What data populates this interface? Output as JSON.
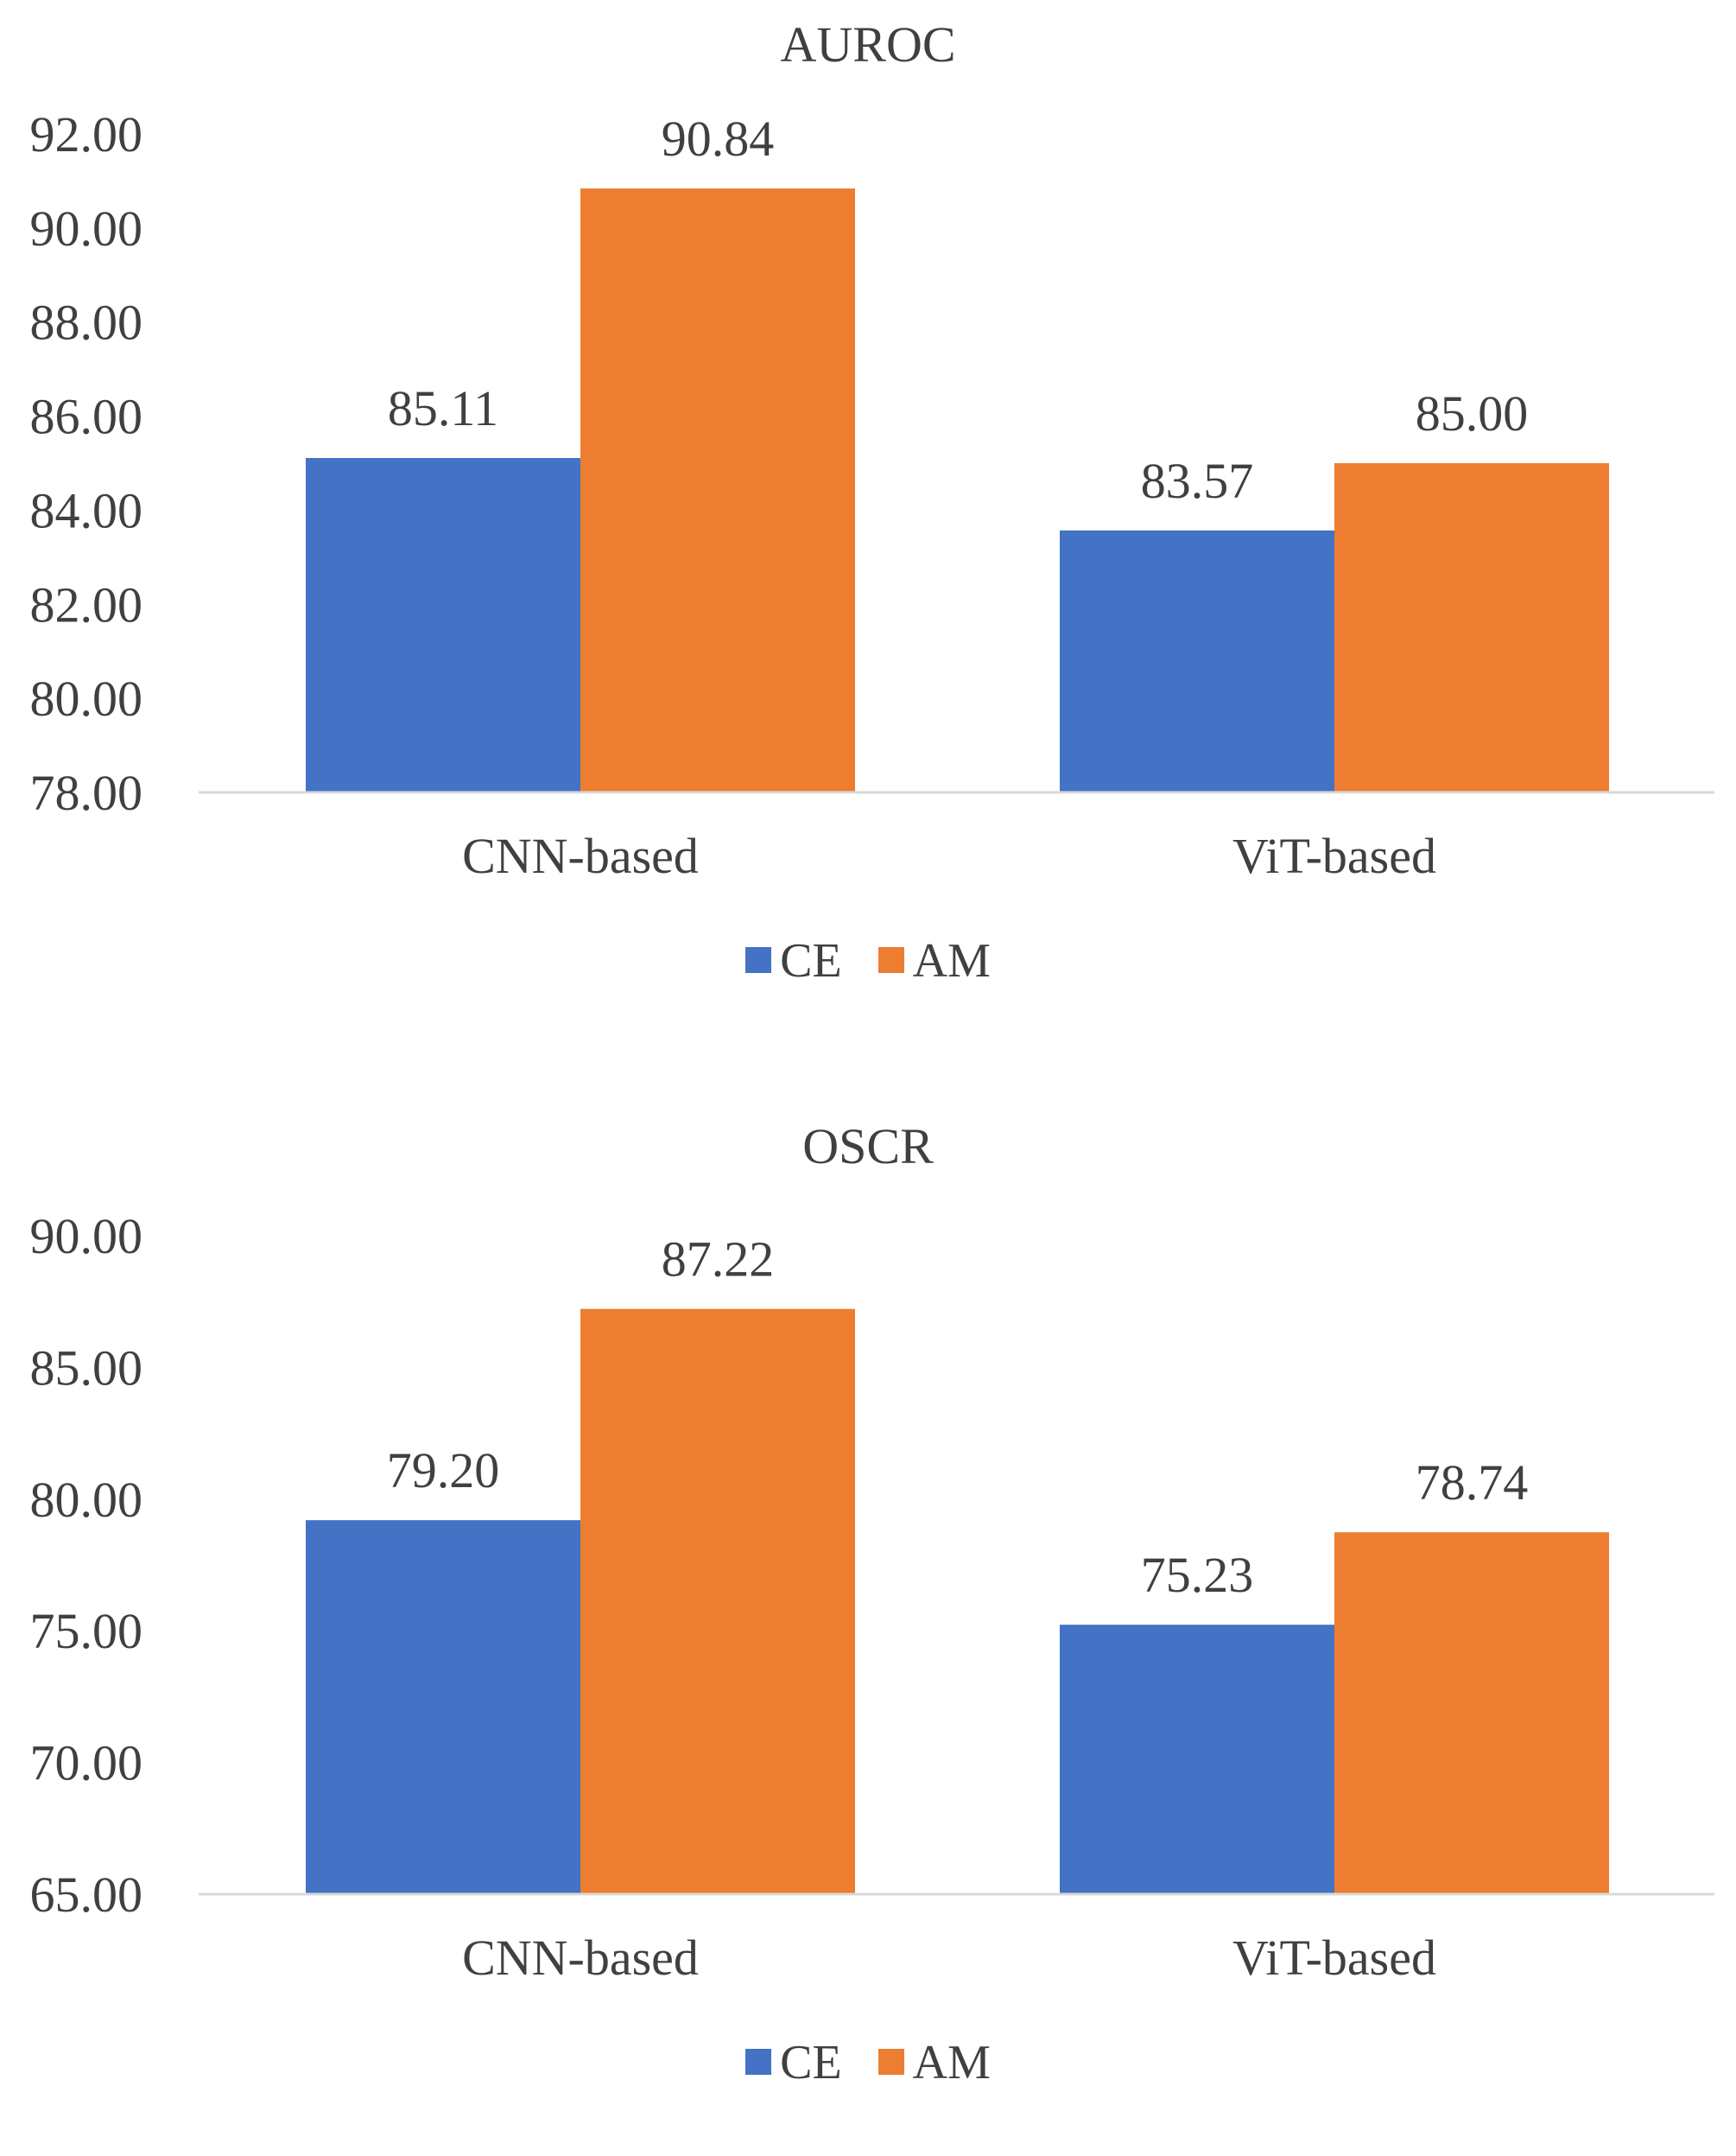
{
  "legend": {
    "ce_label": "CE",
    "am_label": "AM"
  },
  "colors": {
    "CE": "#4472C4",
    "AM": "#ED7D31",
    "text": "#404040",
    "axis": "#d9d9d9"
  },
  "chart_data": [
    {
      "type": "bar",
      "title": "AUROC",
      "categories": [
        "CNN-based",
        "ViT-based"
      ],
      "series": [
        {
          "name": "CE",
          "values": [
            85.11,
            83.57
          ],
          "labels": [
            "85.11",
            "83.57"
          ]
        },
        {
          "name": "AM",
          "values": [
            90.84,
            85.0
          ],
          "labels": [
            "90.84",
            "85.00"
          ]
        }
      ],
      "ylim": [
        78,
        92
      ],
      "yticks": [
        78,
        80,
        82,
        84,
        86,
        88,
        90,
        92
      ],
      "ytick_labels": [
        "78.00",
        "80.00",
        "82.00",
        "84.00",
        "86.00",
        "88.00",
        "90.00",
        "92.00"
      ],
      "xlabel": "",
      "ylabel": "",
      "grid": false,
      "legend": "bottom-center"
    },
    {
      "type": "bar",
      "title": "OSCR",
      "categories": [
        "CNN-based",
        "ViT-based"
      ],
      "series": [
        {
          "name": "CE",
          "values": [
            79.2,
            75.23
          ],
          "labels": [
            "79.20",
            "75.23"
          ]
        },
        {
          "name": "AM",
          "values": [
            87.22,
            78.74
          ],
          "labels": [
            "87.22",
            "78.74"
          ]
        }
      ],
      "ylim": [
        65,
        90
      ],
      "yticks": [
        65,
        70,
        75,
        80,
        85,
        90
      ],
      "ytick_labels": [
        "65.00",
        "70.00",
        "75.00",
        "80.00",
        "85.00",
        "90.00"
      ],
      "xlabel": "",
      "ylabel": "",
      "grid": false,
      "legend": "bottom-center"
    }
  ]
}
